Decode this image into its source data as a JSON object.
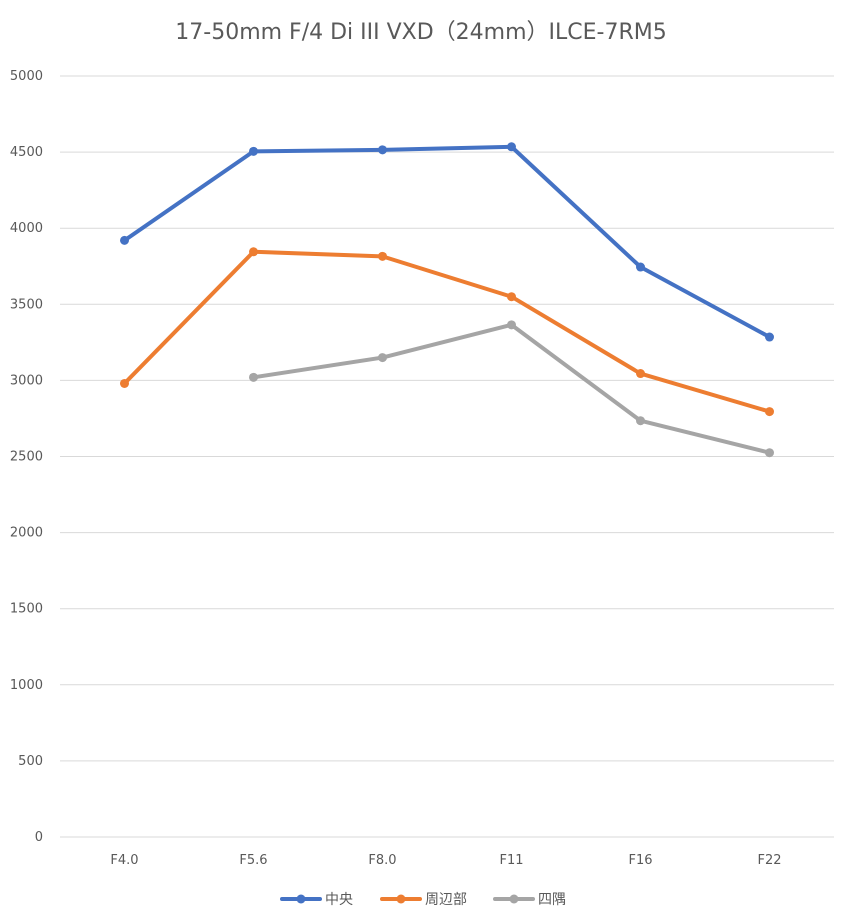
{
  "chart_data": {
    "type": "line",
    "title": "17-50mm F/4 Di III VXD（24mm）ILCE-7RM5",
    "categories": [
      "F4.0",
      "F5.6",
      "F8.0",
      "F11",
      "F16",
      "F22"
    ],
    "ylim": [
      0,
      5000
    ],
    "yticks": [
      "0",
      "500",
      "1000",
      "1500",
      "2000",
      "2500",
      "3000",
      "3500",
      "4000",
      "4500",
      "5000"
    ],
    "grid": true,
    "legend_position": "bottom",
    "series": [
      {
        "name": "中央",
        "color": "#4472C4",
        "values": [
          3920,
          4505,
          4515,
          4535,
          3745,
          3285
        ]
      },
      {
        "name": "周辺部",
        "color": "#ED7D31",
        "values": [
          2980,
          3845,
          3815,
          3550,
          3045,
          2795
        ]
      },
      {
        "name": "四隅",
        "color": "#A5A5A5",
        "values": [
          null,
          3020,
          3150,
          3365,
          2735,
          2525
        ]
      }
    ]
  }
}
